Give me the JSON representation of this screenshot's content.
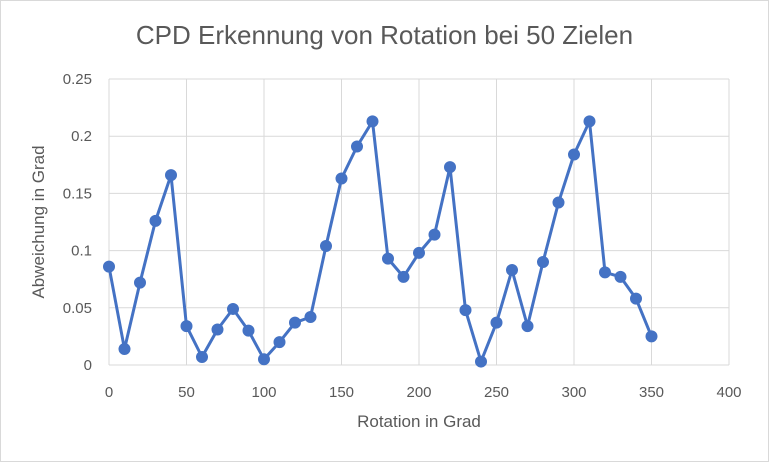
{
  "chart_data": {
    "type": "scatter",
    "title": "CPD Erkennung von Rotation bei 50 Zielen",
    "xlabel": "Rotation in Grad",
    "ylabel": "Abweichung in Grad",
    "xlim": [
      0,
      400
    ],
    "ylim": [
      0,
      0.25
    ],
    "xticks": [
      "0",
      "50",
      "100",
      "150",
      "200",
      "250",
      "300",
      "350",
      "400"
    ],
    "yticks": [
      "0",
      "0.05",
      "0.1",
      "0.15",
      "0.2",
      "0.25"
    ],
    "grid": true,
    "legend": "none",
    "marker": "circle",
    "line": "straight",
    "series": [
      {
        "color": "#4472c4",
        "x": [
          0,
          10,
          20,
          30,
          40,
          50,
          60,
          70,
          80,
          90,
          100,
          110,
          120,
          130,
          140,
          150,
          160,
          170,
          180,
          190,
          200,
          210,
          220,
          230,
          240,
          250,
          260,
          270,
          280,
          290,
          300,
          310,
          320,
          330,
          340,
          350
        ],
        "y": [
          0.086,
          0.014,
          0.072,
          0.126,
          0.166,
          0.034,
          0.007,
          0.031,
          0.049,
          0.03,
          0.005,
          0.02,
          0.037,
          0.042,
          0.104,
          0.163,
          0.191,
          0.213,
          0.093,
          0.077,
          0.098,
          0.114,
          0.173,
          0.048,
          0.003,
          0.037,
          0.083,
          0.034,
          0.09,
          0.142,
          0.184,
          0.213,
          0.081,
          0.077,
          0.058,
          0.025
        ]
      }
    ]
  }
}
